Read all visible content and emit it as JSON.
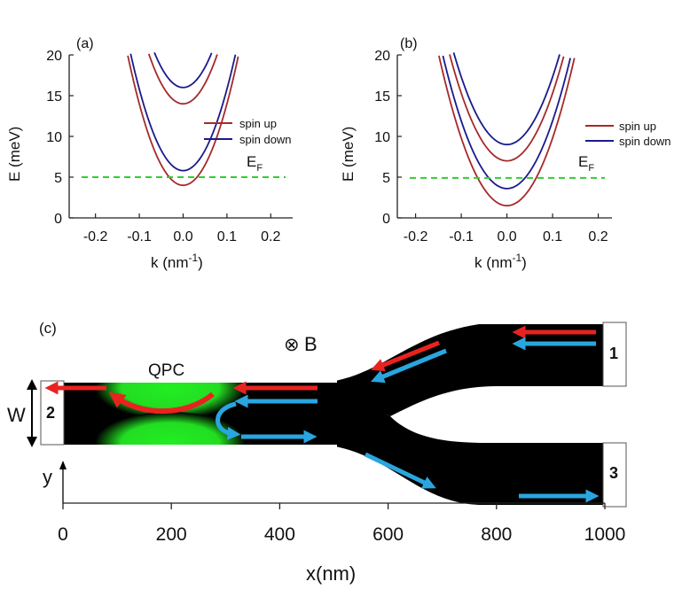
{
  "chart_data": [
    {
      "type": "line",
      "panel_label": "(a)",
      "xlabel": "k (nm",
      "xlabel_sup": "-1",
      "xlabel_close": ")",
      "ylabel": "E (meV)",
      "xlim": [
        -0.26,
        0.25
      ],
      "ylim": [
        0,
        20
      ],
      "xticks": [
        -0.2,
        -0.1,
        0.0,
        0.1,
        0.2
      ],
      "xtick_labels": [
        "-0.2",
        "-0.1",
        "0.0",
        "0.1",
        "0.2"
      ],
      "yticks": [
        0,
        5,
        10,
        15,
        20
      ],
      "ytick_labels": [
        "0",
        "5",
        "10",
        "15",
        "20"
      ],
      "fermi_level": 5,
      "fermi_label": "E",
      "fermi_sub": "F",
      "legend": [
        {
          "name": "spin up",
          "color": "#a52a2a"
        },
        {
          "name": "spin down",
          "color": "#1a1a8c"
        }
      ],
      "series": [
        {
          "name": "spin up subband 1",
          "spin": "up",
          "minimum": 4.0,
          "curvature": 1000
        },
        {
          "name": "spin down subband 1",
          "spin": "down",
          "minimum": 5.8,
          "curvature": 1000
        },
        {
          "name": "spin up subband 2",
          "spin": "up",
          "minimum": 14.0,
          "curvature": 1000
        },
        {
          "name": "spin down subband 2",
          "spin": "down",
          "minimum": 16.0,
          "curvature": 1000
        }
      ]
    },
    {
      "type": "line",
      "panel_label": "(b)",
      "xlabel": "k (nm",
      "xlabel_sup": "-1",
      "xlabel_close": ")",
      "ylabel": "E (meV)",
      "xlim": [
        -0.24,
        0.23
      ],
      "ylim": [
        0,
        20
      ],
      "xticks": [
        -0.2,
        -0.1,
        0.0,
        0.1,
        0.2
      ],
      "xtick_labels": [
        "-0.2",
        "-0.1",
        "0.0",
        "0.1",
        "0.2"
      ],
      "yticks": [
        0,
        5,
        10,
        15,
        20
      ],
      "ytick_labels": [
        "0",
        "5",
        "10",
        "15",
        "20"
      ],
      "fermi_level": 4.9,
      "fermi_label": "E",
      "fermi_sub": "F",
      "legend": [
        {
          "name": "spin up",
          "color": "#a52a2a"
        },
        {
          "name": "spin down",
          "color": "#1a1a8c"
        }
      ],
      "series": [
        {
          "name": "spin up subband 1",
          "spin": "up",
          "minimum": 1.5,
          "curvature": 830
        },
        {
          "name": "spin down subband 1",
          "spin": "down",
          "minimum": 3.6,
          "curvature": 830
        },
        {
          "name": "spin up subband 2",
          "spin": "up",
          "minimum": 7.0,
          "curvature": 830
        },
        {
          "name": "spin down subband 2",
          "spin": "down",
          "minimum": 9.0,
          "curvature": 830
        }
      ]
    }
  ],
  "device": {
    "panel_label": "(c)",
    "qpc_label": "QPC",
    "field_symbol": "⊗",
    "field_label": "B",
    "width_label": "W",
    "y_label": "y",
    "xlabel": "x(nm)",
    "xlim": [
      0,
      1000
    ],
    "xticks": [
      0,
      200,
      400,
      600,
      800,
      1000
    ],
    "xtick_labels": [
      "0",
      "200",
      "400",
      "600",
      "800",
      "1000"
    ],
    "terminals": [
      {
        "id": "1",
        "label": "1"
      },
      {
        "id": "2",
        "label": "2"
      },
      {
        "id": "3",
        "label": "3"
      }
    ],
    "colors": {
      "spin_up_arrow": "#e8231f",
      "spin_down_arrow": "#29a6e0",
      "qpc": "#22dd22",
      "channel": "#000000"
    }
  }
}
